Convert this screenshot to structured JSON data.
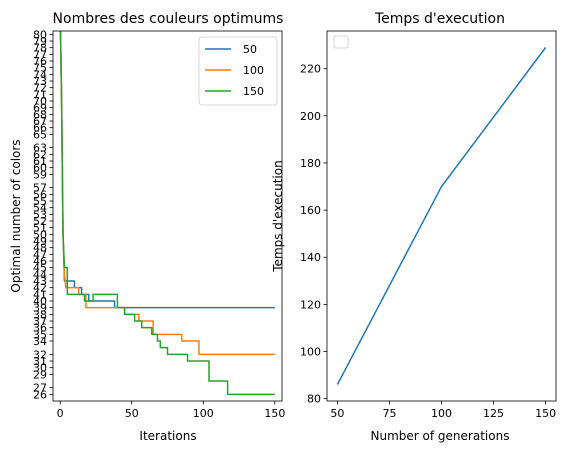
{
  "colors": {
    "series_50": "#1f77b4",
    "series_100": "#ff7f0e",
    "series_150": "#2ca02c",
    "axis": "#000000",
    "background": "#ffffff"
  },
  "chart_data": [
    {
      "type": "line",
      "title": "Nombres des couleurs optimums",
      "xlabel": "Iterations",
      "ylabel": "Optimal number of colors",
      "xlim": [
        -5,
        155
      ],
      "ylim": [
        25,
        80.5
      ],
      "xticks": [
        0,
        50,
        100,
        150
      ],
      "yticks": [
        26,
        27,
        29,
        30,
        31,
        32,
        34,
        35,
        36,
        37,
        38,
        39,
        40,
        41,
        42,
        43,
        44,
        45,
        46,
        47,
        48,
        49,
        50,
        51,
        52,
        53,
        54,
        55,
        56,
        57,
        59,
        60,
        61,
        62,
        63,
        65,
        66,
        67,
        68,
        69,
        70,
        71,
        72,
        73,
        74,
        75,
        76,
        77,
        78,
        79,
        80
      ],
      "grid": false,
      "legend": {
        "position": "top-right",
        "entries": [
          "50",
          "100",
          "150"
        ]
      },
      "series": [
        {
          "name": "50",
          "color": "#1f77b4",
          "x": [
            0,
            1,
            2,
            3,
            10,
            10,
            15,
            15,
            20,
            20,
            38,
            38,
            150
          ],
          "y": [
            84,
            70,
            50,
            43,
            43,
            42,
            42,
            41,
            41,
            40,
            40,
            39,
            39
          ]
        },
        {
          "name": "100",
          "color": "#ff7f0e",
          "x": [
            0,
            1,
            2,
            3,
            4,
            13,
            13,
            18,
            18,
            45,
            45,
            55,
            55,
            65,
            65,
            85,
            85,
            97,
            97,
            150
          ],
          "y": [
            84,
            70,
            50,
            44,
            42,
            42,
            41,
            41,
            39,
            39,
            38,
            38,
            37,
            37,
            35,
            35,
            34,
            34,
            32,
            32
          ]
        },
        {
          "name": "150",
          "color": "#2ca02c",
          "x": [
            0,
            1,
            2,
            3,
            5,
            5,
            17,
            17,
            23,
            23,
            40,
            40,
            45,
            45,
            52,
            52,
            57,
            57,
            64,
            64,
            68,
            68,
            70,
            70,
            75,
            75,
            80,
            80,
            89,
            89,
            104,
            104,
            117,
            117,
            148,
            148,
            150
          ],
          "y": [
            84,
            70,
            50,
            45,
            45,
            41,
            41,
            40,
            40,
            41,
            41,
            39,
            39,
            38,
            38,
            37,
            37,
            36,
            36,
            35,
            35,
            34,
            34,
            33,
            33,
            32,
            32,
            32,
            32,
            31,
            31,
            28,
            28,
            26,
            26,
            26,
            26
          ]
        }
      ]
    },
    {
      "type": "line",
      "title": "Temps d'execution",
      "xlabel": "Number of generations",
      "ylabel": "Temps d'execution",
      "xlim": [
        45,
        155
      ],
      "ylim": [
        79,
        236
      ],
      "xticks": [
        50,
        75,
        100,
        125,
        150
      ],
      "yticks": [
        80,
        100,
        120,
        140,
        160,
        180,
        200,
        220
      ],
      "grid": false,
      "legend": {
        "position": "top-left",
        "entries": []
      },
      "series": [
        {
          "color": "#1f77b4",
          "x": [
            50,
            100,
            150
          ],
          "y": [
            86,
            170,
            229
          ]
        }
      ]
    }
  ]
}
